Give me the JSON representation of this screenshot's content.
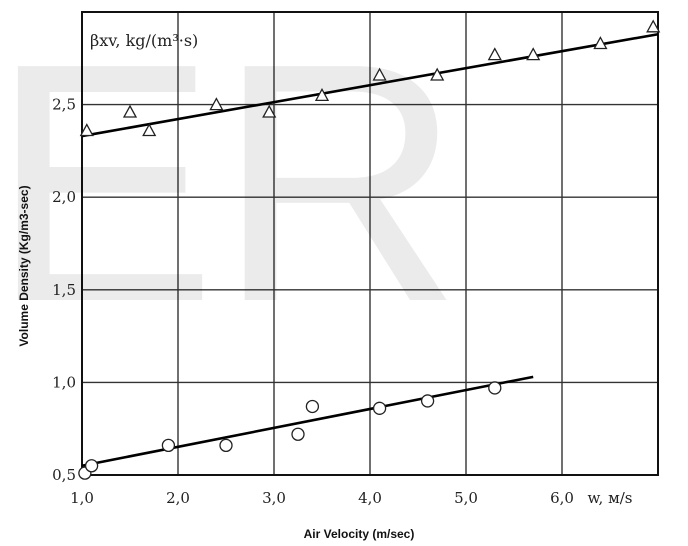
{
  "watermark": "ER",
  "chart_data": {
    "type": "scatter",
    "xlabel": "Air Velocity (m/sec)",
    "xunit_label": "w, м/s",
    "ylabel": "Volume Density (Kg/m3-sec)",
    "inner_label": "βxv, kg/(m³·s)",
    "xlim": [
      1.0,
      7.0
    ],
    "ylim": [
      0.5,
      3.0
    ],
    "xticks": [
      1.0,
      2.0,
      3.0,
      4.0,
      5.0,
      6.0
    ],
    "xtick_labels": [
      "1,0",
      "2,0",
      "3,0",
      "4,0",
      "5,0",
      "6,0"
    ],
    "yticks": [
      0.5,
      1.0,
      1.5,
      2.0,
      2.5
    ],
    "ytick_labels": [
      "0,5",
      "1,0",
      "1,5",
      "2,0",
      "2,5"
    ],
    "grid": true,
    "series": [
      {
        "marker": "triangle",
        "points": [
          {
            "x": 1.05,
            "y": 2.36
          },
          {
            "x": 1.5,
            "y": 2.46
          },
          {
            "x": 1.7,
            "y": 2.36
          },
          {
            "x": 2.4,
            "y": 2.5
          },
          {
            "x": 2.95,
            "y": 2.46
          },
          {
            "x": 3.5,
            "y": 2.55
          },
          {
            "x": 4.1,
            "y": 2.66
          },
          {
            "x": 4.7,
            "y": 2.66
          },
          {
            "x": 5.3,
            "y": 2.77
          },
          {
            "x": 5.7,
            "y": 2.77
          },
          {
            "x": 6.4,
            "y": 2.83
          },
          {
            "x": 6.95,
            "y": 2.92
          }
        ],
        "fit": {
          "x": [
            1.0,
            7.0
          ],
          "y": [
            2.33,
            2.88
          ]
        }
      },
      {
        "marker": "circle",
        "points": [
          {
            "x": 1.03,
            "y": 0.51
          },
          {
            "x": 1.1,
            "y": 0.55
          },
          {
            "x": 1.9,
            "y": 0.66
          },
          {
            "x": 2.5,
            "y": 0.66
          },
          {
            "x": 3.25,
            "y": 0.72
          },
          {
            "x": 3.4,
            "y": 0.87
          },
          {
            "x": 4.1,
            "y": 0.86
          },
          {
            "x": 4.6,
            "y": 0.9
          },
          {
            "x": 5.3,
            "y": 0.97
          }
        ],
        "fit": {
          "x": [
            1.0,
            5.7
          ],
          "y": [
            0.55,
            1.03
          ]
        }
      }
    ]
  }
}
